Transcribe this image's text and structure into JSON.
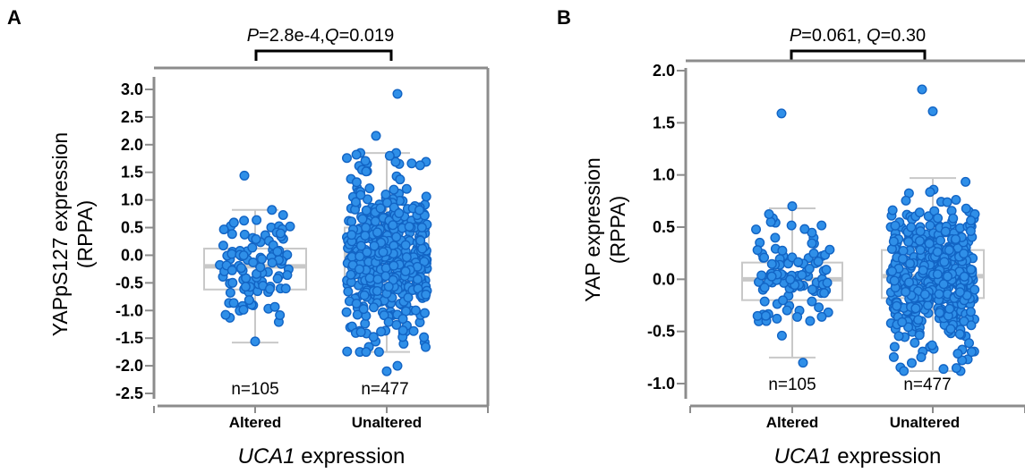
{
  "chart_data": [
    {
      "type": "box",
      "panel_label": "A",
      "significance": {
        "p_label": "P",
        "p_value": "=2.8e-4,",
        "q_label": "Q",
        "q_value": "=0.019"
      },
      "ylabel_line1": "YAPpS127 expression",
      "ylabel_line2": "(RPPA)",
      "xlabel_italic": "UCA1",
      "xlabel_rest": " expression",
      "ylim": [
        -2.6,
        3.3
      ],
      "yticks": [
        3.0,
        2.5,
        2.0,
        1.5,
        1.0,
        0.5,
        0.0,
        -0.5,
        -1.0,
        -1.5,
        -2.0,
        -2.5
      ],
      "ytick_labels": [
        "3.0",
        "2.5",
        "2.0",
        "1.5",
        "1.0",
        "0.5",
        "0.0",
        "-0.5",
        "-1.0",
        "-1.5",
        "-2.0",
        "-2.5"
      ],
      "categories": [
        "Altered",
        "Unaltered"
      ],
      "counts": [
        "n=105",
        "n=477"
      ],
      "boxes": [
        {
          "whisker_low": -1.58,
          "q1": -0.62,
          "median": -0.2,
          "q3": 0.12,
          "whisker_high": 0.82
        },
        {
          "whisker_low": -1.75,
          "q1": -0.42,
          "median": 0.02,
          "q3": 0.5,
          "whisker_high": 1.85
        }
      ],
      "highlight_points": [
        {
          "group": 0,
          "y": 1.44
        },
        {
          "group": 0,
          "y": -1.56
        },
        {
          "group": 1,
          "y": 2.92
        },
        {
          "group": 1,
          "y": 2.16
        },
        {
          "group": 1,
          "y": -2.1
        },
        {
          "group": 1,
          "y": -2.0
        }
      ]
    },
    {
      "type": "box",
      "panel_label": "B",
      "significance": {
        "p_label": "P",
        "p_value": "=0.061, ",
        "q_label": "Q",
        "q_value": "=0.30"
      },
      "ylabel_line1": "YAP expression",
      "ylabel_line2": "(RPPA)",
      "xlabel_italic": "UCA1",
      "xlabel_rest": " expression",
      "ylim": [
        -1.1,
        2.1
      ],
      "yticks": [
        2.0,
        1.5,
        1.0,
        0.5,
        0.0,
        -0.5,
        -1.0
      ],
      "ytick_labels": [
        "2.0",
        "1.5",
        "1.0",
        "0.5",
        "0.0",
        "-0.5",
        "-1.0"
      ],
      "categories": [
        "Altered",
        "Unaltered"
      ],
      "counts": [
        "n=105",
        "n=477"
      ],
      "boxes": [
        {
          "whisker_low": -0.75,
          "q1": -0.2,
          "median": 0.0,
          "q3": 0.16,
          "whisker_high": 0.68
        },
        {
          "whisker_low": -0.88,
          "q1": -0.18,
          "median": 0.03,
          "q3": 0.28,
          "whisker_high": 0.97
        }
      ],
      "highlight_points": [
        {
          "group": 0,
          "y": 1.59
        },
        {
          "group": 0,
          "y": 0.7
        },
        {
          "group": 0,
          "y": -0.8
        },
        {
          "group": 1,
          "y": 1.82
        },
        {
          "group": 1,
          "y": 1.61
        },
        {
          "group": 1,
          "y": -0.86
        }
      ]
    }
  ],
  "colors": {
    "point_fill": "#2f8fe8",
    "point_stroke": "#1264c4",
    "box": "#c8c8c8",
    "median": "#c8c8c8",
    "axis": "#8c8c8c"
  }
}
